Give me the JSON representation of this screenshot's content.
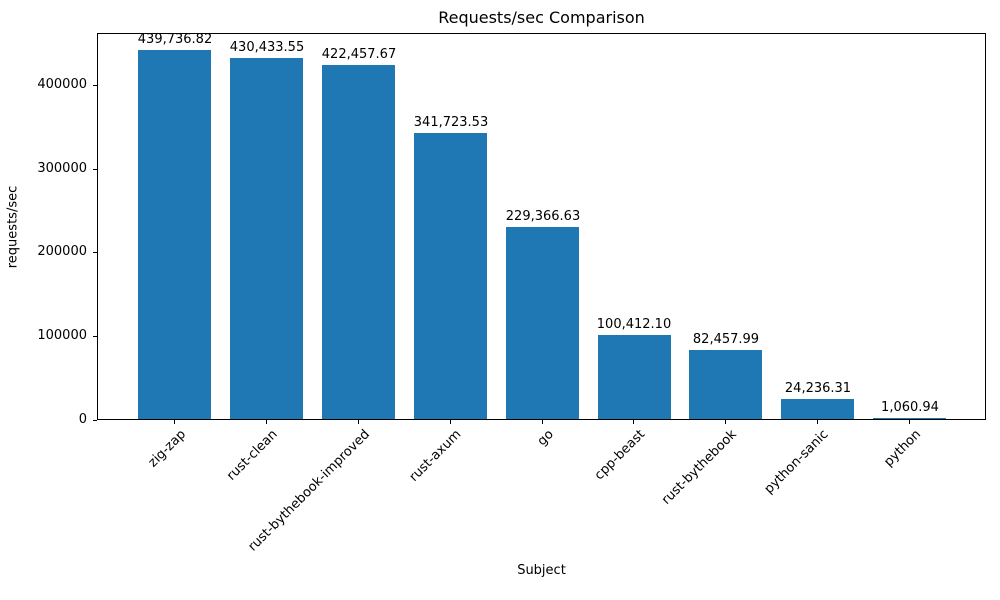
{
  "chart_data": {
    "type": "bar",
    "title": "Requests/sec Comparison",
    "xlabel": "Subject",
    "ylabel": "requests/sec",
    "categories": [
      "zig-zap",
      "rust-clean",
      "rust-bythebook-improved",
      "rust-axum",
      "go",
      "cpp-beast",
      "rust-bythebook",
      "python-sanic",
      "python"
    ],
    "values": [
      439736.82,
      430433.55,
      422457.67,
      341723.53,
      229366.63,
      100412.1,
      82457.99,
      24236.31,
      1060.94
    ],
    "value_labels": [
      "439,736.82",
      "430,433.55",
      "422,457.67",
      "341,723.53",
      "229,366.63",
      "100,412.10",
      "82,457.99",
      "24,236.31",
      "1,060.94"
    ],
    "yticks": [
      0,
      100000,
      200000,
      300000,
      400000
    ],
    "ylim": [
      0,
      461724
    ],
    "bar_color": "#1f77b4",
    "bar_width_fraction": 0.8,
    "x_tick_rotation": 45,
    "grid": false,
    "legend": "none"
  }
}
